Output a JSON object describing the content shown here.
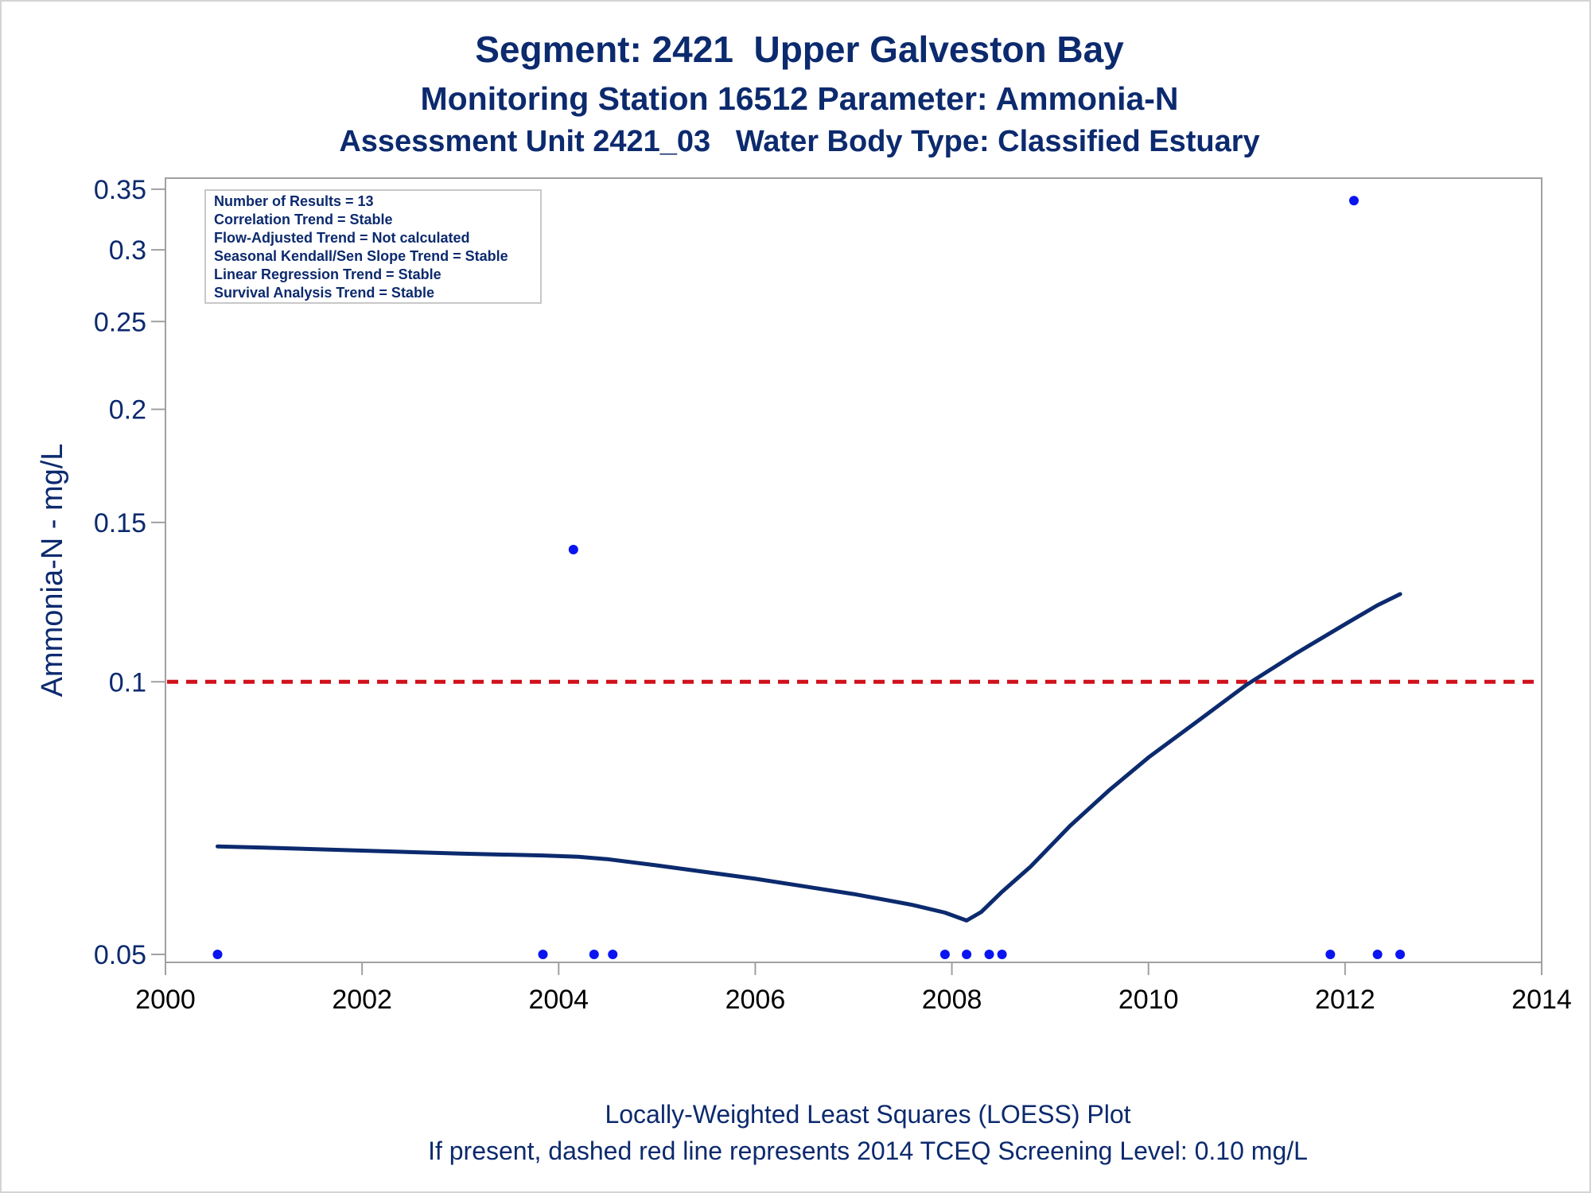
{
  "titles": {
    "line1": "Segment: 2421  Upper Galveston Bay",
    "line2": "Monitoring Station 16512 Parameter: Ammonia-N",
    "line3": "Assessment Unit 2421_03   Water Body Type: Classified Estuary"
  },
  "inset": [
    "Number of Results = 13",
    "Correlation Trend = Stable",
    "Flow-Adjusted Trend = Not calculated",
    "Seasonal Kendall/Sen Slope Trend = Stable",
    "Linear Regression Trend = Stable",
    "Survival Analysis Trend = Stable"
  ],
  "footnotes": {
    "line1": "Locally-Weighted Least Squares (LOESS) Plot",
    "line2": "If present, dashed red line represents 2014 TCEQ Screening Level: 0.10 mg/L"
  },
  "chart_data": {
    "type": "scatter",
    "ylabel": "Ammonia-N - mg/L",
    "xlabel": "",
    "y_scale": "log",
    "xlim": [
      2000,
      2014
    ],
    "ylim": [
      0.049,
      0.36
    ],
    "x_ticks": [
      2000,
      2002,
      2004,
      2006,
      2008,
      2010,
      2012,
      2014
    ],
    "y_ticks": [
      {
        "value": 0.05,
        "label": "0.05"
      },
      {
        "value": 0.1,
        "label": "0.1"
      },
      {
        "value": 0.15,
        "label": "0.15"
      },
      {
        "value": 0.2,
        "label": "0.2"
      },
      {
        "value": 0.25,
        "label": "0.25"
      },
      {
        "value": 0.3,
        "label": "0.3"
      },
      {
        "value": 0.35,
        "label": "0.35"
      }
    ],
    "points": [
      {
        "x": 2000.53,
        "y": 0.05
      },
      {
        "x": 2003.84,
        "y": 0.05
      },
      {
        "x": 2004.15,
        "y": 0.14
      },
      {
        "x": 2004.36,
        "y": 0.05
      },
      {
        "x": 2004.55,
        "y": 0.05
      },
      {
        "x": 2007.93,
        "y": 0.05
      },
      {
        "x": 2008.15,
        "y": 0.05
      },
      {
        "x": 2008.38,
        "y": 0.05
      },
      {
        "x": 2008.51,
        "y": 0.05
      },
      {
        "x": 2011.85,
        "y": 0.05
      },
      {
        "x": 2012.09,
        "y": 0.34
      },
      {
        "x": 2012.33,
        "y": 0.05
      },
      {
        "x": 2012.56,
        "y": 0.05
      }
    ],
    "loess": {
      "x": [
        2000.53,
        2001.0,
        2002.0,
        2003.0,
        2003.84,
        2004.2,
        2004.5,
        2005.0,
        2006.0,
        2007.0,
        2007.6,
        2007.93,
        2008.15,
        2008.3,
        2008.5,
        2008.8,
        2009.2,
        2009.6,
        2010.0,
        2010.5,
        2011.0,
        2011.5,
        2012.0,
        2012.33,
        2012.56
      ],
      "y": [
        0.0658,
        0.0656,
        0.0651,
        0.0646,
        0.0643,
        0.0641,
        0.0637,
        0.0627,
        0.0606,
        0.0583,
        0.0567,
        0.0556,
        0.0545,
        0.0557,
        0.0585,
        0.0625,
        0.0693,
        0.0759,
        0.0825,
        0.0905,
        0.0993,
        0.1075,
        0.1158,
        0.1215,
        0.125
      ]
    },
    "reference_line": {
      "y": 0.1,
      "style": "dashed",
      "color": "#d0111b"
    },
    "colors": {
      "points": "#0a14f0",
      "loess": "#0c2a6e",
      "text": "#0c2a6e",
      "axis": "#a0a0a0"
    },
    "grid": false
  }
}
